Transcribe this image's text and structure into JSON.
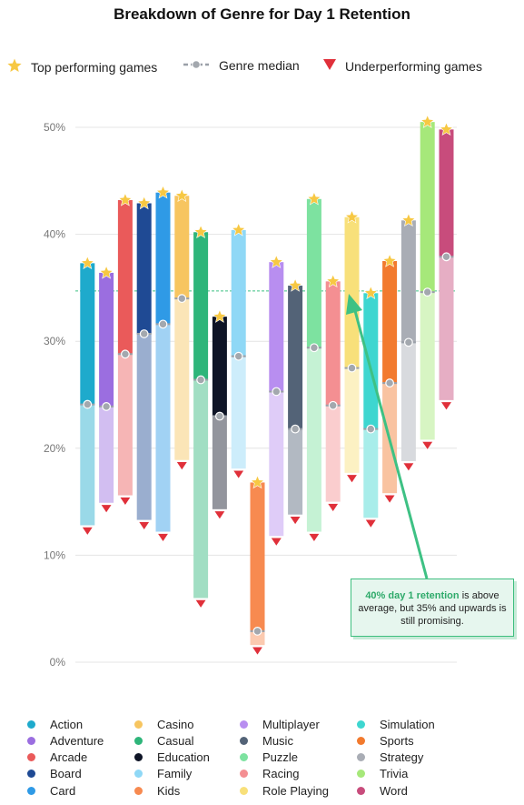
{
  "chart_data": {
    "type": "range-bar",
    "title": "Breakdown of Genre for Day 1 Retention",
    "yticks": [
      "0%",
      "10%",
      "20%",
      "30%",
      "40%",
      "50%"
    ],
    "ylim": [
      0,
      50
    ],
    "reference_line": 34.7,
    "legend": {
      "top": "Top performing games",
      "median": "Genre median",
      "under": "Underperforming games"
    },
    "annotation": {
      "highlight": "40% day 1 retention",
      "rest": " is above average, but 35% and upwards is still promising."
    },
    "genres": [
      {
        "name": "Action",
        "color": "#1eaacc",
        "top": 37.3,
        "median": 24.1,
        "under": 12.8
      },
      {
        "name": "Adventure",
        "color": "#9b6ee0",
        "top": 36.4,
        "median": 23.9,
        "under": 14.9
      },
      {
        "name": "Arcade",
        "color": "#ea5a5a",
        "top": 43.2,
        "median": 28.8,
        "under": 15.6
      },
      {
        "name": "Board",
        "color": "#1f4a94",
        "top": 42.9,
        "median": 30.7,
        "under": 13.3
      },
      {
        "name": "Card",
        "color": "#2f9ae6",
        "top": 43.9,
        "median": 31.6,
        "under": 12.2
      },
      {
        "name": "Casino",
        "color": "#f7c560",
        "top": 43.6,
        "median": 34.0,
        "under": 18.9
      },
      {
        "name": "Casual",
        "color": "#2eb57a",
        "top": 40.2,
        "median": 26.4,
        "under": 6.0
      },
      {
        "name": "Education",
        "color": "#0e1426",
        "top": 32.3,
        "median": 23.0,
        "under": 14.3
      },
      {
        "name": "Family",
        "color": "#8fd8f6",
        "top": 40.4,
        "median": 28.6,
        "under": 18.1
      },
      {
        "name": "Kids",
        "color": "#f78a50",
        "top": 16.8,
        "median": 2.9,
        "under": 1.6
      },
      {
        "name": "Multiplayer",
        "color": "#b88ef0",
        "top": 37.4,
        "median": 25.3,
        "under": 11.8
      },
      {
        "name": "Music",
        "color": "#536377",
        "top": 35.2,
        "median": 21.8,
        "under": 13.8
      },
      {
        "name": "Puzzle",
        "color": "#7de2a0",
        "top": 43.3,
        "median": 29.4,
        "under": 12.2
      },
      {
        "name": "Racing",
        "color": "#f48f92",
        "top": 35.6,
        "median": 24.0,
        "under": 15.0
      },
      {
        "name": "Role Playing",
        "color": "#f8e07a",
        "top": 41.6,
        "median": 27.5,
        "under": 17.7
      },
      {
        "name": "Simulation",
        "color": "#3ed6d0",
        "top": 34.5,
        "median": 21.8,
        "under": 13.5
      },
      {
        "name": "Sports",
        "color": "#f27a2e",
        "top": 37.5,
        "median": 26.1,
        "under": 15.8
      },
      {
        "name": "Strategy",
        "color": "#a9adb5",
        "top": 41.3,
        "median": 29.9,
        "under": 18.8
      },
      {
        "name": "Trivia",
        "color": "#a6e87a",
        "top": 50.5,
        "median": 34.6,
        "under": 20.8
      },
      {
        "name": "Word",
        "color": "#c84c7c",
        "top": 49.8,
        "median": 37.9,
        "under": 24.5
      }
    ]
  }
}
